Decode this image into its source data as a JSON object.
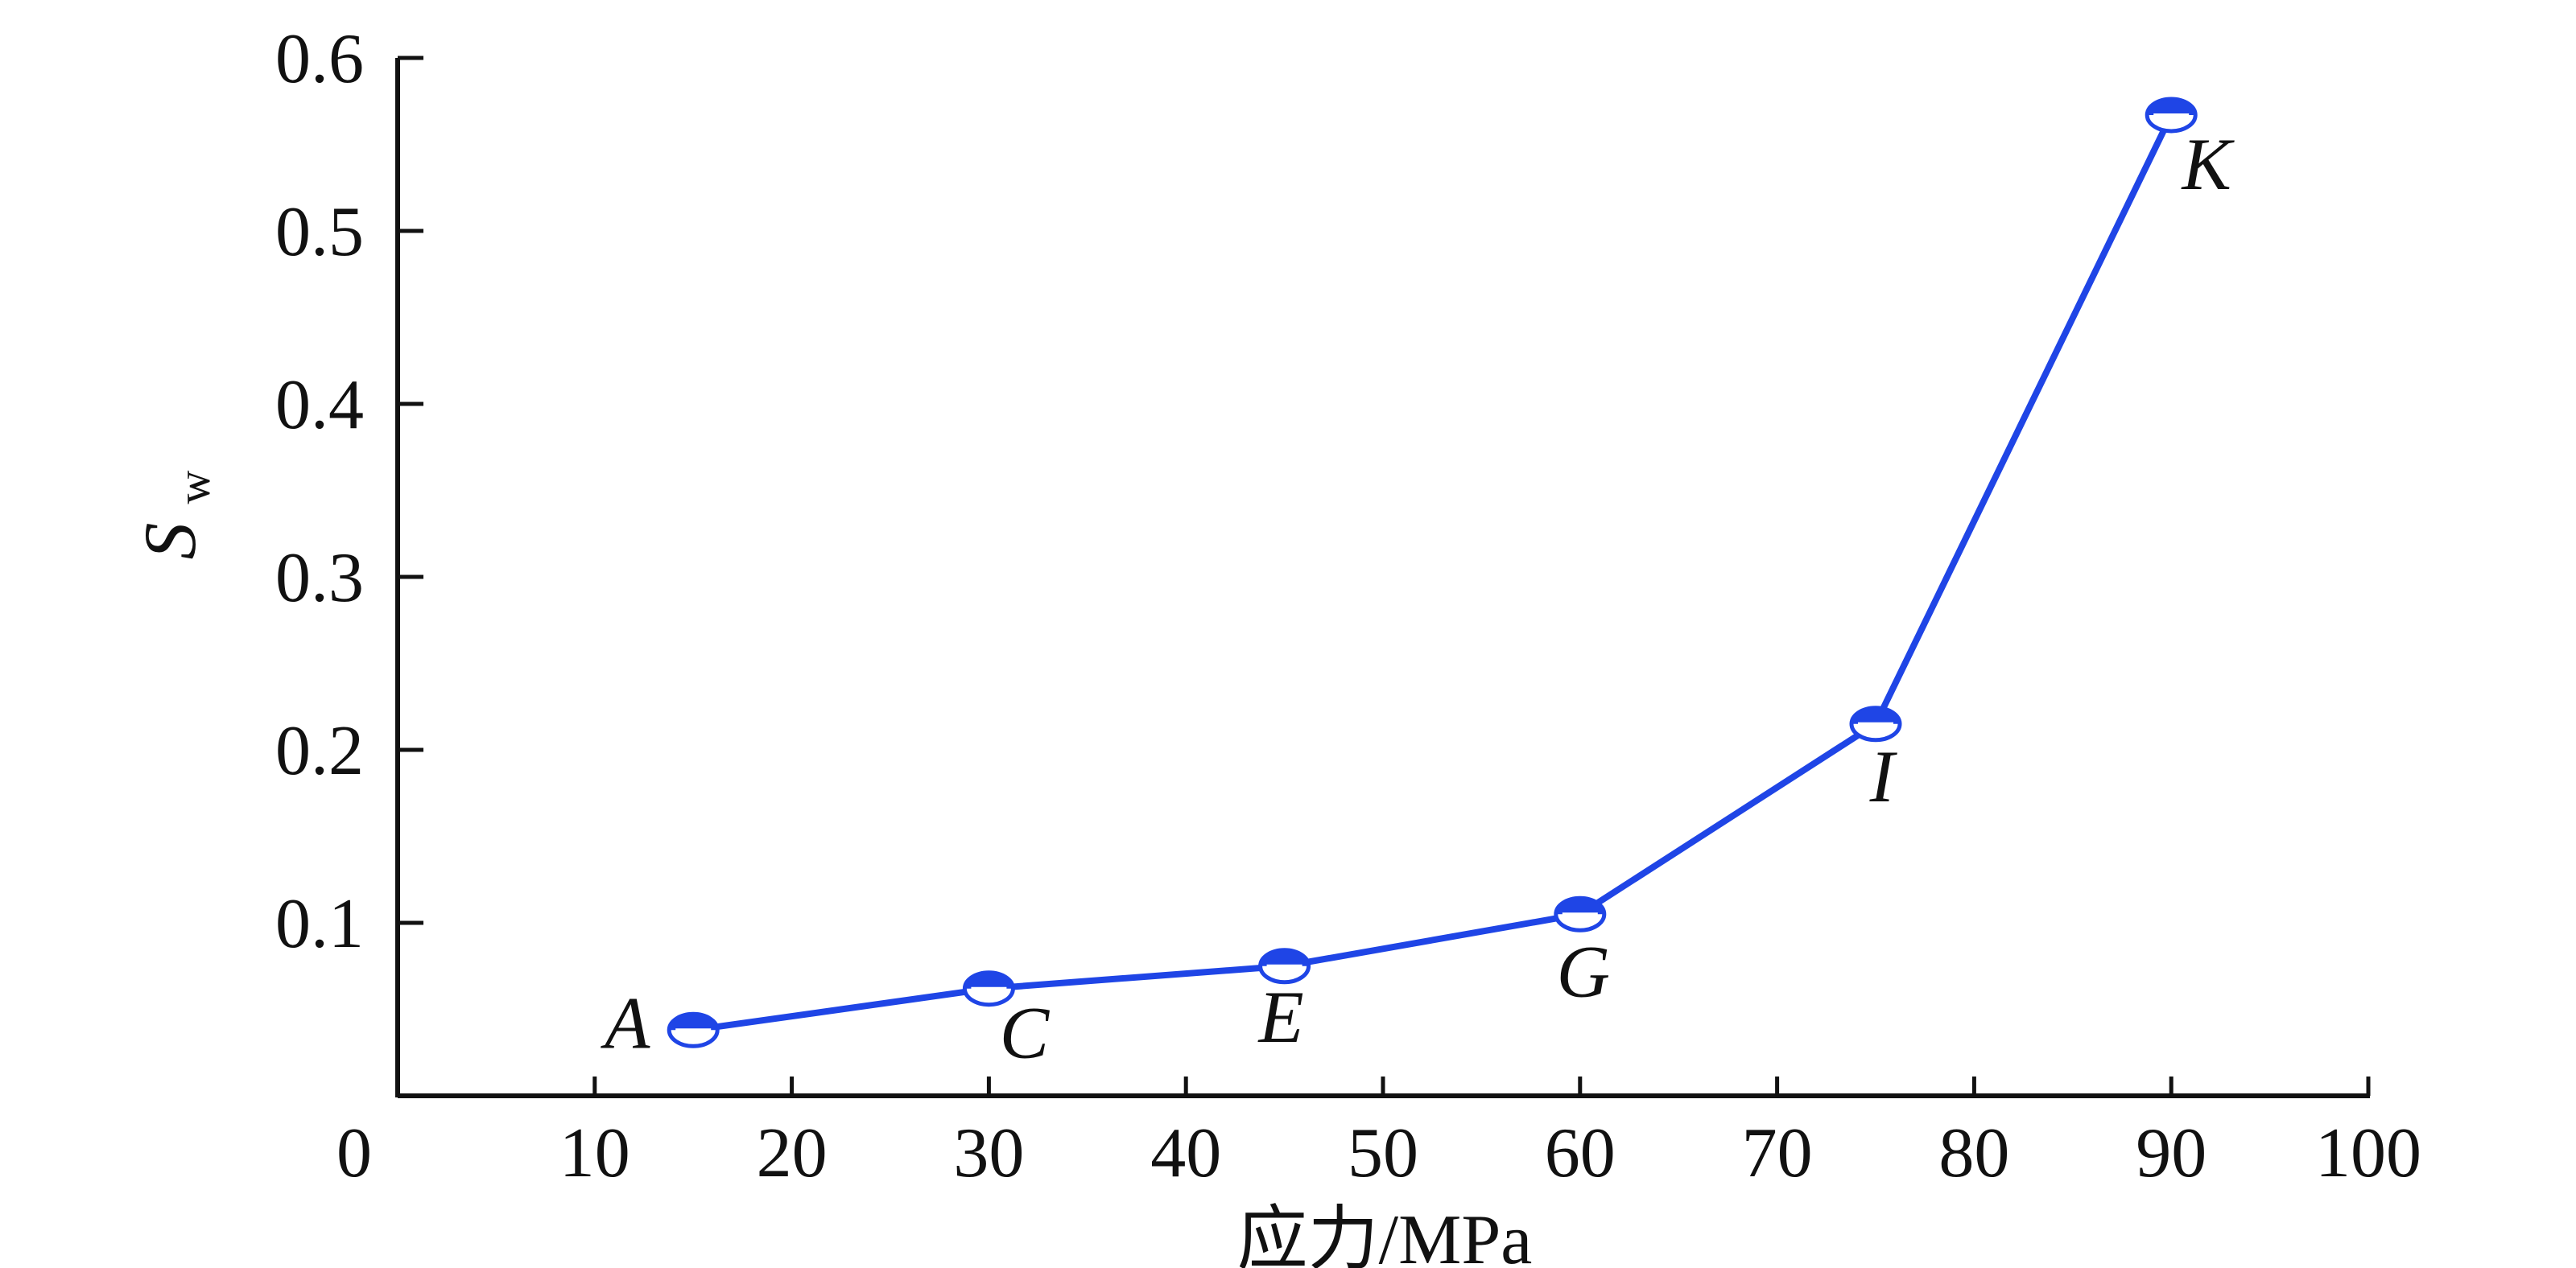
{
  "chart_data": {
    "type": "line",
    "title": "",
    "xlabel": "应力/MPa",
    "ylabel": {
      "main": "S",
      "subscript": "w"
    },
    "xlim": [
      0,
      100
    ],
    "ylim": [
      0,
      0.6
    ],
    "x_ticks": [
      10,
      20,
      30,
      40,
      50,
      60,
      70,
      80,
      90,
      100
    ],
    "x_tick_labels": [
      "10",
      "20",
      "30",
      "40",
      "50",
      "60",
      "70",
      "80",
      "90",
      "100"
    ],
    "y_ticks": [
      0.1,
      0.2,
      0.3,
      0.4,
      0.5,
      0.6
    ],
    "y_tick_labels": [
      "0.1",
      "0.2",
      "0.3",
      "0.4",
      "0.5",
      "0.6"
    ],
    "origin_label": "0",
    "grid": false,
    "series": [
      {
        "points": [
          {
            "label": "A",
            "x": 15,
            "y": 0.038
          },
          {
            "label": "C",
            "x": 30,
            "y": 0.062
          },
          {
            "label": "E",
            "x": 45,
            "y": 0.075
          },
          {
            "label": "G",
            "x": 60,
            "y": 0.105
          },
          {
            "label": "I",
            "x": 75,
            "y": 0.215
          },
          {
            "label": "K",
            "x": 90,
            "y": 0.567
          }
        ]
      }
    ],
    "colors": {
      "line": "#1f45e6",
      "marker_fill": "#1f45e6",
      "marker_bg": "#ffffff",
      "axis": "#111111"
    }
  }
}
